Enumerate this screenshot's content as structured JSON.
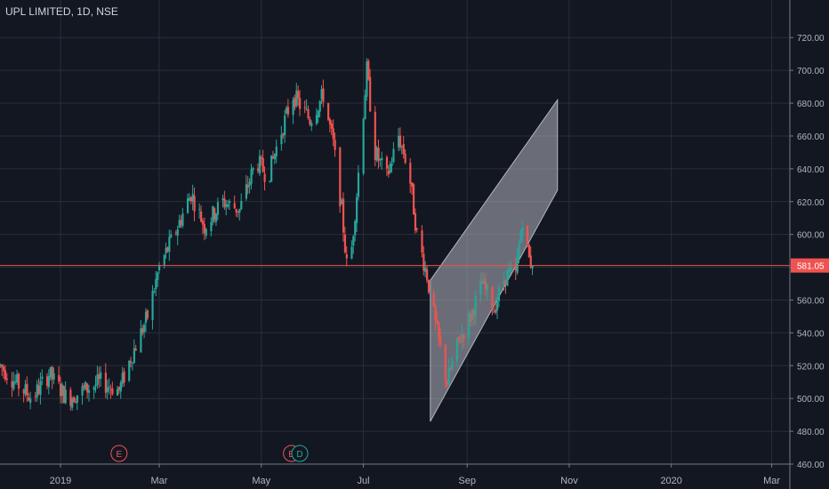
{
  "header": {
    "title": "UPL LIMITED, 1D, NSE"
  },
  "colors": {
    "background": "#131722",
    "grid": "#2a2e39",
    "up": "#26a69a",
    "down": "#ef5350",
    "axis_text": "#b2b5be",
    "price_line": "#ef5350",
    "channel_fill": "#b2b5be"
  },
  "chart_data": {
    "type": "candlestick",
    "ylim": [
      460,
      725
    ],
    "y_ticks": [
      "720.00",
      "700.00",
      "680.00",
      "660.00",
      "640.00",
      "620.00",
      "600.00",
      "580.00",
      "560.00",
      "540.00",
      "520.00",
      "500.00",
      "480.00",
      "460.00"
    ],
    "x_ticks": [
      {
        "label": "2019",
        "date": "2019-01-01"
      },
      {
        "label": "Mar",
        "date": "2019-03-01"
      },
      {
        "label": "May",
        "date": "2019-05-01"
      },
      {
        "label": "Jul",
        "date": "2019-07-01"
      },
      {
        "label": "Sep",
        "date": "2019-09-01"
      },
      {
        "label": "Nov",
        "date": "2019-11-01"
      },
      {
        "label": "2020",
        "date": "2020-01-01"
      },
      {
        "label": "Mar",
        "date": "2020-03-01"
      }
    ],
    "last_price": "581.05",
    "last_price_value": 581.05,
    "grid": true,
    "events": [
      {
        "label": "E",
        "date": "2019-02-05",
        "color": "#ef5350"
      },
      {
        "label": "E",
        "date": "2019-05-19",
        "color": "#ef5350"
      },
      {
        "label": "D",
        "date": "2019-05-24",
        "color": "#26a69a"
      }
    ],
    "channel": {
      "upper_start": {
        "date": "2019-08-10",
        "value": 572
      },
      "upper_end": {
        "date": "2019-10-25",
        "value": 682
      },
      "lower_start": {
        "date": "2019-08-10",
        "value": 486
      },
      "lower_end": {
        "date": "2019-10-25",
        "value": 627
      }
    },
    "price_path": [
      [
        "2018-11-26",
        520
      ],
      [
        "2018-12-05",
        510
      ],
      [
        "2018-12-15",
        500
      ],
      [
        "2018-12-25",
        515
      ],
      [
        "2019-01-05",
        500
      ],
      [
        "2019-01-15",
        505
      ],
      [
        "2019-01-25",
        510
      ],
      [
        "2019-02-05",
        505
      ],
      [
        "2019-02-12",
        525
      ],
      [
        "2019-02-22",
        550
      ],
      [
        "2019-03-01",
        580
      ],
      [
        "2019-03-10",
        600
      ],
      [
        "2019-03-20",
        625
      ],
      [
        "2019-03-28",
        605
      ],
      [
        "2019-04-08",
        620
      ],
      [
        "2019-04-18",
        615
      ],
      [
        "2019-04-28",
        645
      ],
      [
        "2019-05-05",
        635
      ],
      [
        "2019-05-12",
        660
      ],
      [
        "2019-05-20",
        685
      ],
      [
        "2019-05-30",
        670
      ],
      [
        "2019-06-07",
        685
      ],
      [
        "2019-06-13",
        655
      ],
      [
        "2019-06-18",
        615
      ],
      [
        "2019-06-22",
        570
      ],
      [
        "2019-06-27",
        625
      ],
      [
        "2019-07-03",
        700
      ],
      [
        "2019-07-08",
        650
      ],
      [
        "2019-07-15",
        635
      ],
      [
        "2019-07-22",
        660
      ],
      [
        "2019-07-28",
        640
      ],
      [
        "2019-08-02",
        600
      ],
      [
        "2019-08-08",
        575
      ],
      [
        "2019-08-13",
        545
      ],
      [
        "2019-08-20",
        510
      ],
      [
        "2019-08-27",
        535
      ],
      [
        "2019-09-03",
        550
      ],
      [
        "2019-09-10",
        570
      ],
      [
        "2019-09-17",
        555
      ],
      [
        "2019-09-24",
        575
      ],
      [
        "2019-09-30",
        575
      ],
      [
        "2019-10-04",
        610
      ],
      [
        "2019-10-08",
        585
      ],
      [
        "2019-10-10",
        581.05
      ]
    ]
  }
}
